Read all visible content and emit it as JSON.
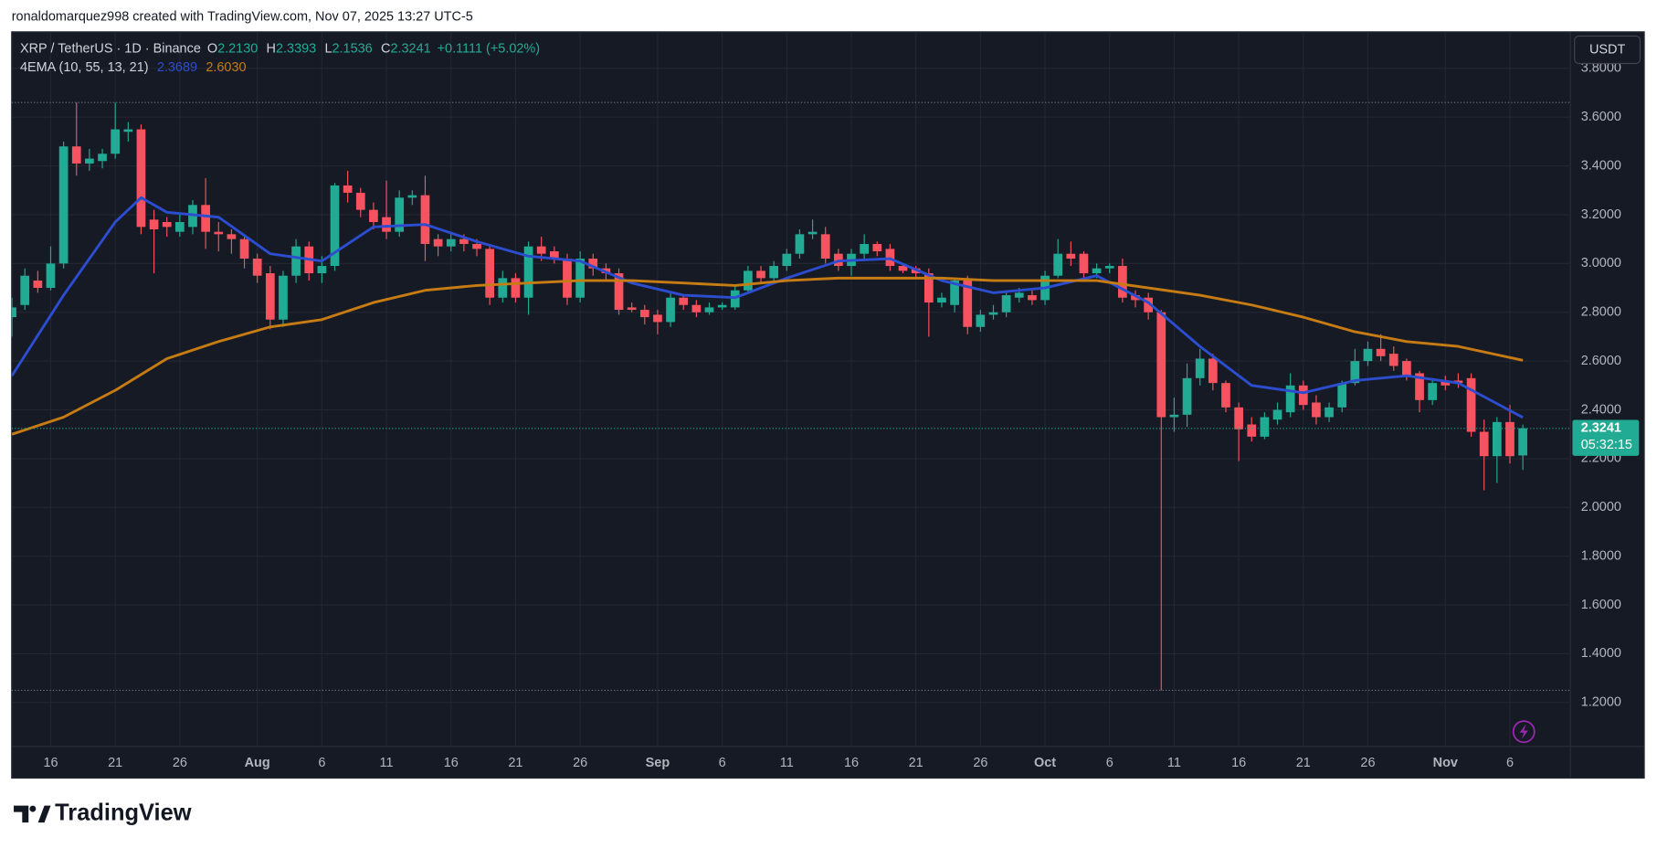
{
  "header": {
    "attribution": "ronaldomarquez998 created with TradingView.com, Nov 07, 2025 13:27 UTC-5"
  },
  "chart_data": {
    "type": "candlestick",
    "legend": {
      "symbol": "XRP / TetherUS · 1D · Binance",
      "ohlc": [
        {
          "key": "O",
          "text": "2.2130"
        },
        {
          "key": "H",
          "text": "2.3393"
        },
        {
          "key": "L",
          "text": "2.1536"
        },
        {
          "key": "C",
          "text": "2.3241"
        }
      ],
      "change": "+0.1111 (+5.02%)",
      "indicator": "4EMA (10, 55, 13, 21)",
      "indicator_values": [
        "2.3689",
        "2.6030"
      ]
    },
    "categories": [
      "Jul 13",
      "Jul 14",
      "Jul 15",
      "Jul 16",
      "Jul 17",
      "Jul 18",
      "Jul 19",
      "Jul 20",
      "Jul 21",
      "Jul 22",
      "Jul 23",
      "Jul 24",
      "Jul 25",
      "Jul 26",
      "Jul 27",
      "Jul 28",
      "Jul 29",
      "Jul 30",
      "Jul 31",
      "Aug 1",
      "Aug 2",
      "Aug 3",
      "Aug 4",
      "Aug 5",
      "Aug 6",
      "Aug 7",
      "Aug 8",
      "Aug 9",
      "Aug 10",
      "Aug 11",
      "Aug 12",
      "Aug 13",
      "Aug 14",
      "Aug 15",
      "Aug 16",
      "Aug 17",
      "Aug 18",
      "Aug 19",
      "Aug 20",
      "Aug 21",
      "Aug 22",
      "Aug 23",
      "Aug 24",
      "Aug 25",
      "Aug 26",
      "Aug 27",
      "Aug 28",
      "Aug 29",
      "Aug 30",
      "Aug 31",
      "Sep 1",
      "Sep 2",
      "Sep 3",
      "Sep 4",
      "Sep 5",
      "Sep 6",
      "Sep 7",
      "Sep 8",
      "Sep 9",
      "Sep 10",
      "Sep 11",
      "Sep 12",
      "Sep 13",
      "Sep 14",
      "Sep 15",
      "Sep 16",
      "Sep 17",
      "Sep 18",
      "Sep 19",
      "Sep 20",
      "Sep 21",
      "Sep 22",
      "Sep 23",
      "Sep 24",
      "Sep 25",
      "Sep 26",
      "Sep 27",
      "Sep 28",
      "Sep 29",
      "Sep 30",
      "Oct 1",
      "Oct 2",
      "Oct 3",
      "Oct 4",
      "Oct 5",
      "Oct 6",
      "Oct 7",
      "Oct 8",
      "Oct 9",
      "Oct 10",
      "Oct 11",
      "Oct 12",
      "Oct 13",
      "Oct 14",
      "Oct 15",
      "Oct 16",
      "Oct 17",
      "Oct 18",
      "Oct 19",
      "Oct 20",
      "Oct 21",
      "Oct 22",
      "Oct 23",
      "Oct 24",
      "Oct 25",
      "Oct 26",
      "Oct 27",
      "Oct 28",
      "Oct 29",
      "Oct 30",
      "Oct 31",
      "Nov 1",
      "Nov 2",
      "Nov 3",
      "Nov 4",
      "Nov 5",
      "Nov 6",
      "Nov 7"
    ],
    "open": [
      2.78,
      2.83,
      2.93,
      2.9,
      3.0,
      3.48,
      3.41,
      3.42,
      3.45,
      3.54,
      3.55,
      3.18,
      3.17,
      3.13,
      3.15,
      3.24,
      3.13,
      3.12,
      3.1,
      3.02,
      2.96,
      2.77,
      2.95,
      3.07,
      2.96,
      2.99,
      3.32,
      3.29,
      3.22,
      3.19,
      3.13,
      3.27,
      3.28,
      3.1,
      3.07,
      3.1,
      3.08,
      3.06,
      2.86,
      2.94,
      2.86,
      3.07,
      3.05,
      3.02,
      2.86,
      3.02,
      2.98,
      2.96,
      2.82,
      2.81,
      2.79,
      2.76,
      2.86,
      2.83,
      2.8,
      2.82,
      2.82,
      2.89,
      2.97,
      2.94,
      2.99,
      3.04,
      3.12,
      3.12,
      3.04,
      2.99,
      3.04,
      3.08,
      3.06,
      2.99,
      2.98,
      2.96,
      2.84,
      2.83,
      2.93,
      2.74,
      2.79,
      2.8,
      2.86,
      2.87,
      2.85,
      2.95,
      3.04,
      3.04,
      2.96,
      2.98,
      2.99,
      2.87,
      2.86,
      2.8,
      2.37,
      2.38,
      2.53,
      2.61,
      2.51,
      2.41,
      2.34,
      2.29,
      2.36,
      2.39,
      2.5,
      2.43,
      2.37,
      2.41,
      2.51,
      2.6,
      2.65,
      2.63,
      2.6,
      2.55,
      2.44,
      2.52,
      2.52,
      2.53,
      2.31,
      2.21,
      2.35,
      2.213
    ],
    "high": [
      2.86,
      2.98,
      2.97,
      3.07,
      3.5,
      3.66,
      3.47,
      3.47,
      3.66,
      3.58,
      3.57,
      3.22,
      3.19,
      3.2,
      3.26,
      3.35,
      3.17,
      3.14,
      3.12,
      3.04,
      2.99,
      2.97,
      3.1,
      3.09,
      3.03,
      3.33,
      3.38,
      3.31,
      3.25,
      3.34,
      3.3,
      3.3,
      3.36,
      3.12,
      3.13,
      3.12,
      3.1,
      3.08,
      2.97,
      2.96,
      3.09,
      3.11,
      3.07,
      3.04,
      3.05,
      3.04,
      3.0,
      2.98,
      2.84,
      2.83,
      2.81,
      2.88,
      2.87,
      2.85,
      2.84,
      2.84,
      2.91,
      2.99,
      2.99,
      3.01,
      3.06,
      3.14,
      3.18,
      3.15,
      3.06,
      3.06,
      3.12,
      3.09,
      3.08,
      3.0,
      2.99,
      2.98,
      2.88,
      2.94,
      2.95,
      2.81,
      2.83,
      2.88,
      2.9,
      2.89,
      2.97,
      3.1,
      3.09,
      3.05,
      3.0,
      3.0,
      3.02,
      2.89,
      2.88,
      2.81,
      2.45,
      2.59,
      2.65,
      2.63,
      2.52,
      2.43,
      2.37,
      2.39,
      2.43,
      2.55,
      2.52,
      2.46,
      2.43,
      2.52,
      2.65,
      2.68,
      2.71,
      2.66,
      2.61,
      2.56,
      2.53,
      2.54,
      2.55,
      2.55,
      2.36,
      2.37,
      2.42,
      2.3393
    ],
    "low": [
      2.7,
      2.81,
      2.88,
      2.89,
      2.98,
      3.36,
      3.38,
      3.39,
      3.43,
      3.5,
      3.12,
      2.96,
      3.11,
      3.11,
      3.12,
      3.06,
      3.05,
      3.04,
      2.98,
      2.92,
      2.73,
      2.74,
      2.92,
      2.93,
      2.92,
      2.97,
      3.25,
      3.19,
      3.14,
      3.1,
      3.11,
      3.24,
      3.01,
      3.03,
      3.05,
      3.05,
      3.03,
      2.83,
      2.84,
      2.84,
      2.79,
      3.01,
      3.0,
      2.83,
      2.84,
      2.95,
      2.93,
      2.79,
      2.8,
      2.75,
      2.71,
      2.74,
      2.81,
      2.78,
      2.79,
      2.81,
      2.81,
      2.88,
      2.92,
      2.92,
      2.97,
      3.02,
      3.1,
      3.0,
      2.97,
      2.95,
      3.02,
      3.03,
      2.97,
      2.96,
      2.94,
      2.7,
      2.82,
      2.8,
      2.71,
      2.72,
      2.77,
      2.78,
      2.84,
      2.83,
      2.83,
      2.94,
      2.99,
      2.94,
      2.94,
      2.96,
      2.84,
      2.82,
      2.77,
      1.25,
      2.31,
      2.33,
      2.5,
      2.48,
      2.39,
      2.19,
      2.27,
      2.28,
      2.34,
      2.37,
      2.4,
      2.34,
      2.35,
      2.39,
      2.5,
      2.58,
      2.6,
      2.56,
      2.52,
      2.39,
      2.42,
      2.48,
      2.49,
      2.29,
      2.07,
      2.1,
      2.18,
      2.1536
    ],
    "close": [
      2.82,
      2.95,
      2.9,
      3.0,
      3.48,
      3.41,
      3.43,
      3.45,
      3.55,
      3.55,
      3.15,
      3.14,
      3.15,
      3.17,
      3.24,
      3.13,
      3.12,
      3.1,
      3.02,
      2.95,
      2.77,
      2.95,
      3.07,
      2.96,
      2.99,
      3.32,
      3.29,
      3.22,
      3.17,
      3.13,
      3.27,
      3.28,
      3.08,
      3.07,
      3.1,
      3.08,
      3.06,
      2.86,
      2.94,
      2.86,
      3.07,
      3.04,
      3.02,
      2.86,
      3.02,
      2.98,
      2.96,
      2.81,
      2.81,
      2.78,
      2.76,
      2.86,
      2.83,
      2.8,
      2.82,
      2.83,
      2.89,
      2.97,
      2.94,
      2.99,
      3.04,
      3.12,
      3.13,
      3.02,
      2.99,
      3.04,
      3.08,
      3.05,
      2.99,
      2.97,
      2.96,
      2.84,
      2.86,
      2.93,
      2.74,
      2.79,
      2.8,
      2.87,
      2.88,
      2.85,
      2.95,
      3.04,
      3.02,
      2.96,
      2.98,
      2.99,
      2.86,
      2.85,
      2.8,
      2.37,
      2.38,
      2.53,
      2.61,
      2.51,
      2.41,
      2.32,
      2.29,
      2.37,
      2.4,
      2.5,
      2.42,
      2.37,
      2.41,
      2.51,
      2.6,
      2.65,
      2.62,
      2.58,
      2.54,
      2.44,
      2.51,
      2.5,
      2.51,
      2.31,
      2.21,
      2.35,
      2.21,
      2.3241
    ],
    "up_color": "#22ab94",
    "down_color": "#f7525f",
    "series": [
      {
        "color": "#2c4dd0",
        "x": [
          "Jul 13",
          "Jul 17",
          "Jul 21",
          "Jul 23",
          "Jul 25",
          "Jul 29",
          "Aug 2",
          "Aug 6",
          "Aug 10",
          "Aug 14",
          "Aug 18",
          "Aug 22",
          "Aug 26",
          "Aug 30",
          "Sep 3",
          "Sep 7",
          "Sep 11",
          "Sep 15",
          "Sep 19",
          "Sep 23",
          "Sep 27",
          "Oct 1",
          "Oct 5",
          "Oct 9",
          "Oct 13",
          "Oct 17",
          "Oct 21",
          "Oct 25",
          "Oct 29",
          "Nov 2",
          "Nov 7"
        ],
        "values": [
          2.54,
          2.87,
          3.17,
          3.27,
          3.21,
          3.19,
          3.04,
          3.01,
          3.15,
          3.16,
          3.09,
          3.03,
          3.01,
          2.92,
          2.87,
          2.86,
          2.94,
          3.01,
          3.02,
          2.93,
          2.88,
          2.9,
          2.95,
          2.84,
          2.66,
          2.5,
          2.47,
          2.52,
          2.54,
          2.51,
          2.3689
        ]
      },
      {
        "color": "#c77c13",
        "x": [
          "Jul 13",
          "Jul 17",
          "Jul 21",
          "Jul 25",
          "Jul 29",
          "Aug 2",
          "Aug 6",
          "Aug 10",
          "Aug 14",
          "Aug 18",
          "Aug 22",
          "Aug 26",
          "Aug 30",
          "Sep 3",
          "Sep 7",
          "Sep 11",
          "Sep 15",
          "Sep 19",
          "Sep 23",
          "Sep 27",
          "Oct 1",
          "Oct 5",
          "Oct 9",
          "Oct 13",
          "Oct 17",
          "Oct 21",
          "Oct 25",
          "Oct 29",
          "Nov 2",
          "Nov 7"
        ],
        "values": [
          2.3,
          2.37,
          2.48,
          2.61,
          2.68,
          2.74,
          2.77,
          2.84,
          2.89,
          2.91,
          2.92,
          2.93,
          2.93,
          2.92,
          2.91,
          2.93,
          2.94,
          2.94,
          2.94,
          2.93,
          2.93,
          2.93,
          2.9,
          2.87,
          2.83,
          2.78,
          2.72,
          2.68,
          2.66,
          2.603
        ]
      }
    ],
    "ylim": [
      1.02,
      3.95
    ],
    "yticks": [
      {
        "value": 1.2,
        "label": "1.2000"
      },
      {
        "value": 1.4,
        "label": "1.4000"
      },
      {
        "value": 1.6,
        "label": "1.6000"
      },
      {
        "value": 1.8,
        "label": "1.8000"
      },
      {
        "value": 2.0,
        "label": "2.0000"
      },
      {
        "value": 2.2,
        "label": "2.2000"
      },
      {
        "value": 2.4,
        "label": "2.4000"
      },
      {
        "value": 2.6,
        "label": "2.6000"
      },
      {
        "value": 2.8,
        "label": "2.8000"
      },
      {
        "value": 3.0,
        "label": "3.0000"
      },
      {
        "value": 3.2,
        "label": "3.2000"
      },
      {
        "value": 3.4,
        "label": "3.4000"
      },
      {
        "value": 3.6,
        "label": "3.6000"
      },
      {
        "value": 3.8,
        "label": "3.8000"
      }
    ],
    "xticks": [
      {
        "value": "Jul 16",
        "label": "16"
      },
      {
        "value": "Jul 21",
        "label": "21"
      },
      {
        "value": "Jul 26",
        "label": "26"
      },
      {
        "value": "Aug 1",
        "label": "Aug"
      },
      {
        "value": "Aug 6",
        "label": "6"
      },
      {
        "value": "Aug 11",
        "label": "11"
      },
      {
        "value": "Aug 16",
        "label": "16"
      },
      {
        "value": "Aug 21",
        "label": "21"
      },
      {
        "value": "Aug 26",
        "label": "26"
      },
      {
        "value": "Sep 1",
        "label": "Sep"
      },
      {
        "value": "Sep 6",
        "label": "6"
      },
      {
        "value": "Sep 11",
        "label": "11"
      },
      {
        "value": "Sep 16",
        "label": "16"
      },
      {
        "value": "Sep 21",
        "label": "21"
      },
      {
        "value": "Sep 26",
        "label": "26"
      },
      {
        "value": "Oct 1",
        "label": "Oct"
      },
      {
        "value": "Oct 6",
        "label": "6"
      },
      {
        "value": "Oct 11",
        "label": "11"
      },
      {
        "value": "Oct 16",
        "label": "16"
      },
      {
        "value": "Oct 21",
        "label": "21"
      },
      {
        "value": "Oct 26",
        "label": "26"
      },
      {
        "value": "Nov 1",
        "label": "Nov"
      },
      {
        "value": "Nov 6",
        "label": "6"
      }
    ],
    "currency": "USDT",
    "countdown": "05:32:15",
    "grid": true
  },
  "footer": {
    "logo": "TradingView"
  }
}
